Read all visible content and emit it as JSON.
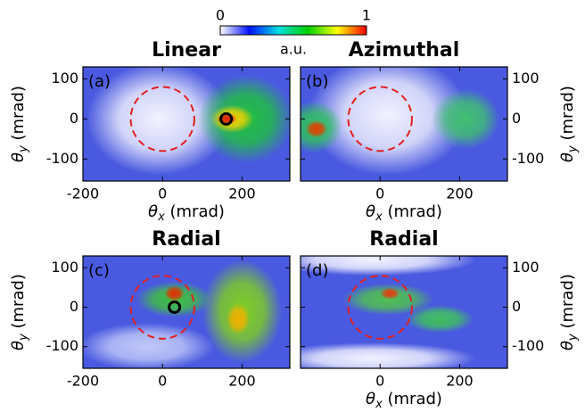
{
  "chart_data": [
    {
      "type": "heatmap",
      "title": "Linear",
      "panel": "(a)",
      "xlim": [
        -200,
        320
      ],
      "ylim": [
        -155,
        130
      ],
      "xticks": [
        -200,
        0,
        200
      ],
      "yticks": [
        100,
        0,
        -100
      ],
      "xlabel": [
        "θ",
        "x",
        " (mrad)"
      ],
      "ylabel": [
        "θ",
        "y",
        " (mrad)"
      ],
      "yaxis": "left",
      "circle": {
        "center": [
          0,
          0
        ],
        "radius": 80,
        "color": "#e02020"
      },
      "marker": {
        "x": 160,
        "y": 0,
        "color": "#000000"
      }
    },
    {
      "type": "heatmap",
      "title": "Azimuthal",
      "panel": "(b)",
      "xlim": [
        -200,
        320
      ],
      "ylim": [
        -155,
        130
      ],
      "xticks": [
        0,
        200
      ],
      "yticks": [
        100,
        0,
        -100
      ],
      "xlabel": [
        "θ",
        "x",
        " (mrad)"
      ],
      "ylabel": [
        "θ",
        "y",
        " (mrad)"
      ],
      "yaxis": "right",
      "circle": {
        "center": [
          0,
          0
        ],
        "radius": 80,
        "color": "#e02020"
      }
    },
    {
      "type": "heatmap",
      "title": "Radial",
      "panel": "(c)",
      "xlim": [
        -200,
        320
      ],
      "ylim": [
        -155,
        130
      ],
      "xticks": [
        -200,
        0,
        200
      ],
      "yticks": [
        100,
        0,
        -100
      ],
      "ylabel": [
        "θ",
        "y",
        " (mrad)"
      ],
      "yaxis": "left",
      "circle": {
        "center": [
          0,
          0
        ],
        "radius": 80,
        "color": "#e02020"
      },
      "marker": {
        "x": 30,
        "y": 0,
        "color": "#000000"
      }
    },
    {
      "type": "heatmap",
      "title": "Radial",
      "panel": "(d)",
      "xlim": [
        -200,
        320
      ],
      "ylim": [
        -155,
        130
      ],
      "xticks": [
        0,
        200
      ],
      "yticks": [
        100,
        0,
        -100
      ],
      "xlabel": [
        "θ",
        "x",
        " (mrad)"
      ],
      "ylabel": [
        "θ",
        "y",
        " (mrad)"
      ],
      "yaxis": "right",
      "circle": {
        "center": [
          0,
          0
        ],
        "radius": 80,
        "color": "#e02020"
      }
    }
  ],
  "colorbar": {
    "lim": [
      0,
      1
    ],
    "ticks": [
      0,
      1
    ],
    "label": "a.u.",
    "colors": [
      "#ffffff",
      "#0010ff",
      "#00e0e0",
      "#00d000",
      "#ffff00",
      "#ff0000"
    ]
  }
}
